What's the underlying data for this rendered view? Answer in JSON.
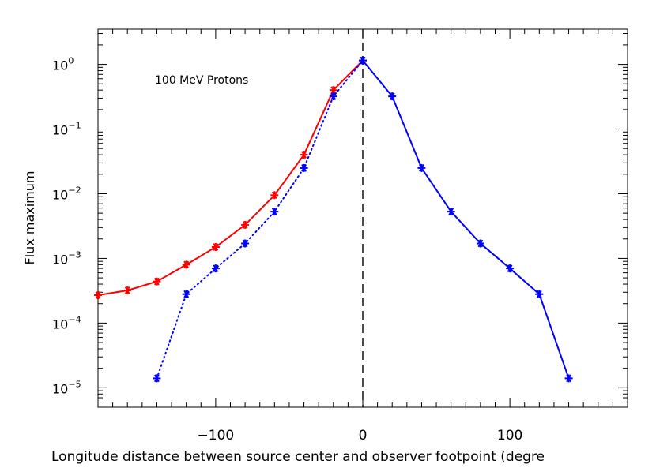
{
  "chart_data": {
    "type": "line",
    "title": "",
    "annotation": "100 MeV Protons",
    "xlabel": "Longitude distance between source center and observer footpoint (degre",
    "ylabel": "Flux maximum",
    "xlim": [
      -180,
      180
    ],
    "ylim": [
      5e-06,
      3.5
    ],
    "yscale": "log",
    "x_ticks": [
      -100,
      0,
      100
    ],
    "x_tick_labels": [
      "−100",
      "0",
      "100"
    ],
    "y_ticks": [
      {
        "value": 1,
        "base": "10",
        "exp": "0"
      },
      {
        "value": 0.1,
        "base": "10",
        "exp": "−1"
      },
      {
        "value": 0.01,
        "base": "10",
        "exp": "−2"
      },
      {
        "value": 0.001,
        "base": "10",
        "exp": "−3"
      },
      {
        "value": 0.0001,
        "base": "10",
        "exp": "−4"
      },
      {
        "value": 1e-05,
        "base": "10",
        "exp": "−5"
      }
    ],
    "reference_line": {
      "x": 0,
      "style": "dashed"
    },
    "series": [
      {
        "color": "#ff0000",
        "line_style": "solid",
        "marker": "asterisk",
        "x": [
          -180,
          -160,
          -140,
          -120,
          -100,
          -80,
          -60,
          -40,
          -20,
          0
        ],
        "y": [
          0.00027,
          0.00032,
          0.00044,
          0.0008,
          0.0015,
          0.0033,
          0.0095,
          0.04,
          0.4,
          1.15
        ]
      },
      {
        "color": "#0000ff",
        "line_style": "dotted",
        "marker": "asterisk",
        "x": [
          -140,
          -120,
          -100,
          -80,
          -60,
          -40,
          -20,
          0
        ],
        "y": [
          1.4e-05,
          0.00028,
          0.0007,
          0.0017,
          0.0053,
          0.025,
          0.32,
          1.15
        ]
      },
      {
        "color": "#0000ff",
        "line_style": "solid",
        "marker": "asterisk",
        "x": [
          0,
          20,
          40,
          60,
          80,
          100,
          120,
          140
        ],
        "y": [
          1.15,
          0.32,
          0.025,
          0.0053,
          0.0017,
          0.0007,
          0.00028,
          1.4e-05
        ]
      }
    ],
    "grid": false,
    "legend": "none"
  }
}
